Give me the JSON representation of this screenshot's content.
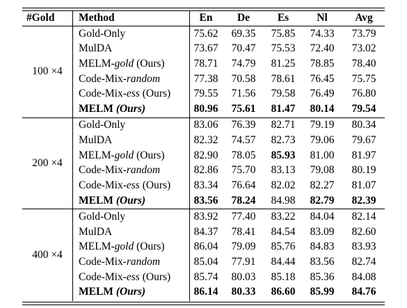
{
  "table": {
    "header": [
      "#Gold",
      "Method",
      "En",
      "De",
      "Es",
      "Nl",
      "Avg"
    ],
    "groups": [
      {
        "label": "100 ×4",
        "rows": [
          {
            "method": [
              "Gold-Only"
            ],
            "values": [
              "75.62",
              "69.35",
              "75.85",
              "74.33",
              "73.79"
            ],
            "bold": [
              false,
              false,
              false,
              false,
              false
            ]
          },
          {
            "method": [
              "MulDA"
            ],
            "values": [
              "73.67",
              "70.47",
              "75.53",
              "72.40",
              "73.02"
            ],
            "bold": [
              false,
              false,
              false,
              false,
              false
            ]
          },
          {
            "method": [
              "MELM-",
              "gold",
              " (Ours)"
            ],
            "values": [
              "78.71",
              "74.79",
              "81.25",
              "78.85",
              "78.40"
            ],
            "bold": [
              false,
              false,
              false,
              false,
              false
            ]
          },
          {
            "method": [
              "Code-Mix-",
              "random"
            ],
            "values": [
              "77.38",
              "70.58",
              "78.61",
              "76.45",
              "75.75"
            ],
            "bold": [
              false,
              false,
              false,
              false,
              false
            ]
          },
          {
            "method": [
              "Code-Mix-",
              "ess",
              " (Ours)"
            ],
            "values": [
              "79.55",
              "71.56",
              "79.58",
              "76.49",
              "76.80"
            ],
            "bold": [
              false,
              false,
              false,
              false,
              false
            ]
          },
          {
            "method": [
              "MELM ",
              "(Ours)"
            ],
            "values": [
              "80.96",
              "75.61",
              "81.47",
              "80.14",
              "79.54"
            ],
            "bold": [
              true,
              true,
              true,
              true,
              true
            ]
          }
        ]
      },
      {
        "label": "200 ×4",
        "rows": [
          {
            "method": [
              "Gold-Only"
            ],
            "values": [
              "83.06",
              "76.39",
              "82.71",
              "79.19",
              "80.34"
            ],
            "bold": [
              false,
              false,
              false,
              false,
              false
            ]
          },
          {
            "method": [
              "MulDA"
            ],
            "values": [
              "82.32",
              "74.57",
              "82.73",
              "79.06",
              "79.67"
            ],
            "bold": [
              false,
              false,
              false,
              false,
              false
            ]
          },
          {
            "method": [
              "MELM-",
              "gold",
              " (Ours)"
            ],
            "values": [
              "82.90",
              "78.05",
              "85.93",
              "81.00",
              "81.97"
            ],
            "bold": [
              false,
              false,
              true,
              false,
              false
            ]
          },
          {
            "method": [
              "Code-Mix-",
              "random"
            ],
            "values": [
              "82.86",
              "75.70",
              "83.13",
              "79.08",
              "80.19"
            ],
            "bold": [
              false,
              false,
              false,
              false,
              false
            ]
          },
          {
            "method": [
              "Code-Mix-",
              "ess",
              " (Ours)"
            ],
            "values": [
              "83.34",
              "76.64",
              "82.02",
              "82.27",
              "81.07"
            ],
            "bold": [
              false,
              false,
              false,
              false,
              false
            ]
          },
          {
            "method": [
              "MELM ",
              "(Ours)"
            ],
            "values": [
              "83.56",
              "78.24",
              "84.98",
              "82.79",
              "82.39"
            ],
            "bold": [
              true,
              true,
              false,
              true,
              true
            ]
          }
        ]
      },
      {
        "label": "400 ×4",
        "rows": [
          {
            "method": [
              "Gold-Only"
            ],
            "values": [
              "83.92",
              "77.40",
              "83.22",
              "84.04",
              "82.14"
            ],
            "bold": [
              false,
              false,
              false,
              false,
              false
            ]
          },
          {
            "method": [
              "MulDA"
            ],
            "values": [
              "84.37",
              "78.41",
              "84.54",
              "83.09",
              "82.60"
            ],
            "bold": [
              false,
              false,
              false,
              false,
              false
            ]
          },
          {
            "method": [
              "MELM-",
              "gold",
              " (Ours)"
            ],
            "values": [
              "86.04",
              "79.09",
              "85.76",
              "84.83",
              "83.93"
            ],
            "bold": [
              false,
              false,
              false,
              false,
              false
            ]
          },
          {
            "method": [
              "Code-Mix-",
              "random"
            ],
            "values": [
              "85.04",
              "77.91",
              "84.44",
              "83.56",
              "82.74"
            ],
            "bold": [
              false,
              false,
              false,
              false,
              false
            ]
          },
          {
            "method": [
              "Code-Mix-",
              "ess",
              " (Ours)"
            ],
            "values": [
              "85.74",
              "80.03",
              "85.18",
              "85.36",
              "84.08"
            ],
            "bold": [
              false,
              false,
              false,
              false,
              false
            ]
          },
          {
            "method": [
              "MELM ",
              "(Ours)"
            ],
            "values": [
              "86.14",
              "80.33",
              "86.60",
              "85.99",
              "84.76"
            ],
            "bold": [
              true,
              true,
              true,
              true,
              true
            ]
          }
        ]
      }
    ]
  }
}
